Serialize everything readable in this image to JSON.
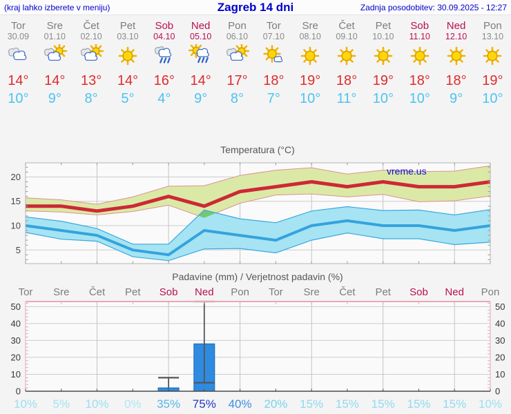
{
  "header": {
    "left_note": "(kraj lahko izberete v meniju)",
    "title": "Zagreb 14 dni",
    "updated": "Zadnja posodobitev: 30.09.2025 - 12:27"
  },
  "colors": {
    "header_blue": "#0000cc",
    "weekday_gray": "#7c7c7c",
    "weekend_red": "#bb0e50",
    "tmax_red": "#dd2c2c",
    "tmin_blue": "#4cc2f1",
    "temp_line_max": "#cc2936",
    "temp_line_min": "#35a3dd",
    "band_max": "#dbe9a6",
    "band_max_edge": "#e09090",
    "band_min": "#a6e4f3",
    "band_min_edge": "#3aa7e0",
    "band_overlap": "#74c874",
    "bar_blue": "#2e8be0",
    "bar_border": "#1a66b8",
    "whisker": "#555555",
    "precip_frame_pink": "#e8a8b8",
    "gridline": "#cccccc",
    "axis_label": "#444444",
    "chart_title": "#555555"
  },
  "forecast": {
    "days": [
      {
        "name": "Tor",
        "date": "30.09",
        "weekend": false,
        "icon": "cloudy",
        "tmax": "14°",
        "tmin": "10°"
      },
      {
        "name": "Sre",
        "date": "01.10",
        "weekend": false,
        "icon": "sun-cloud",
        "tmax": "14°",
        "tmin": "9°"
      },
      {
        "name": "Čet",
        "date": "02.10",
        "weekend": false,
        "icon": "sun-cloud",
        "tmax": "13°",
        "tmin": "8°"
      },
      {
        "name": "Pet",
        "date": "03.10",
        "weekend": false,
        "icon": "sunny",
        "tmax": "14°",
        "tmin": "5°"
      },
      {
        "name": "Sob",
        "date": "04.10",
        "weekend": true,
        "icon": "rain",
        "tmax": "16°",
        "tmin": "4°"
      },
      {
        "name": "Ned",
        "date": "05.10",
        "weekend": true,
        "icon": "sun-cloud-rain",
        "tmax": "14°",
        "tmin": "9°"
      },
      {
        "name": "Pon",
        "date": "06.10",
        "weekend": false,
        "icon": "sun-cloud",
        "tmax": "17°",
        "tmin": "8°"
      },
      {
        "name": "Tor",
        "date": "07.10",
        "weekend": false,
        "icon": "sun-small-cloud",
        "tmax": "18°",
        "tmin": "7°"
      },
      {
        "name": "Sre",
        "date": "08.10",
        "weekend": false,
        "icon": "sunny",
        "tmax": "19°",
        "tmin": "10°"
      },
      {
        "name": "Čet",
        "date": "09.10",
        "weekend": false,
        "icon": "sunny",
        "tmax": "18°",
        "tmin": "11°"
      },
      {
        "name": "Pet",
        "date": "10.10",
        "weekend": false,
        "icon": "sunny",
        "tmax": "19°",
        "tmin": "10°"
      },
      {
        "name": "Sob",
        "date": "11.10",
        "weekend": true,
        "icon": "sunny",
        "tmax": "18°",
        "tmin": "10°"
      },
      {
        "name": "Ned",
        "date": "12.10",
        "weekend": true,
        "icon": "sunny",
        "tmax": "18°",
        "tmin": "9°"
      },
      {
        "name": "Pon",
        "date": "13.10",
        "weekend": false,
        "icon": "sunny",
        "tmax": "19°",
        "tmin": "10°"
      }
    ]
  },
  "chart_data": [
    {
      "type": "area",
      "title": "Temperatura (°C)",
      "watermark": "vreme.us",
      "x_count": 14,
      "ylim": [
        2.2,
        22.9
      ],
      "yticks": [
        5,
        10,
        15,
        20
      ],
      "grid": "on",
      "vgrid_every_days": 2,
      "series": [
        {
          "name": "max-temperature",
          "values": [
            14,
            14,
            13,
            14,
            16,
            14,
            17,
            18,
            19,
            18,
            19,
            18,
            18,
            19
          ]
        },
        {
          "name": "max-range-high",
          "values": [
            15.7,
            15.3,
            14.4,
            15.9,
            18.1,
            18.2,
            20.3,
            21.4,
            21.9,
            20.6,
            21.4,
            21.1,
            21.2,
            22.3
          ]
        },
        {
          "name": "max-range-low",
          "values": [
            13.0,
            12.8,
            12.2,
            12.9,
            14.2,
            11.6,
            14.6,
            16.3,
            16.5,
            15.9,
            16.4,
            14.9,
            15.1,
            16.1
          ]
        },
        {
          "name": "min-temperature",
          "values": [
            10,
            9,
            8,
            5,
            4,
            9,
            8,
            7,
            10,
            11,
            10,
            10,
            9,
            10
          ]
        },
        {
          "name": "min-range-high",
          "values": [
            11.8,
            10.9,
            9.4,
            6.2,
            6.2,
            13.2,
            11.4,
            10.6,
            13.0,
            13.9,
            13.1,
            13.2,
            12.2,
            13.3
          ]
        },
        {
          "name": "min-range-low",
          "values": [
            8.6,
            7.2,
            6.8,
            3.6,
            2.8,
            5.2,
            5.3,
            4.4,
            7.0,
            8.5,
            7.3,
            7.3,
            6.1,
            6.6
          ]
        }
      ]
    },
    {
      "type": "bar",
      "title": "Padavine (mm) / Verjetnost padavin (%)",
      "categories": [
        "Tor",
        "Sre",
        "Čet",
        "Pet",
        "Sob",
        "Ned",
        "Pon",
        "Tor",
        "Sre",
        "Čet",
        "Pet",
        "Sob",
        "Ned",
        "Pon"
      ],
      "weekend_mask": [
        false,
        false,
        false,
        false,
        true,
        true,
        false,
        false,
        false,
        false,
        false,
        true,
        true,
        false
      ],
      "values": [
        0,
        0,
        0,
        0,
        2,
        28,
        0,
        0,
        0,
        0,
        0,
        0,
        0,
        0
      ],
      "err_low": [
        null,
        null,
        null,
        null,
        null,
        5,
        null,
        null,
        null,
        null,
        null,
        null,
        null,
        null
      ],
      "err_high": [
        null,
        null,
        null,
        null,
        8,
        53,
        null,
        null,
        null,
        null,
        null,
        null,
        null,
        null
      ],
      "ylim": [
        0,
        53
      ],
      "yticks": [
        0,
        10,
        20,
        30,
        40,
        50
      ],
      "grid": "on",
      "probabilities": [
        {
          "label": "10%",
          "color": "#9adef2"
        },
        {
          "label": "5%",
          "color": "#a5e3f4"
        },
        {
          "label": "10%",
          "color": "#9adef2"
        },
        {
          "label": "0%",
          "color": "#ade7f6"
        },
        {
          "label": "35%",
          "color": "#58b7e8"
        },
        {
          "label": "75%",
          "color": "#2336cc"
        },
        {
          "label": "40%",
          "color": "#3f8de2"
        },
        {
          "label": "20%",
          "color": "#79d2ee"
        },
        {
          "label": "15%",
          "color": "#8fdaf0"
        },
        {
          "label": "15%",
          "color": "#8fdaf0"
        },
        {
          "label": "15%",
          "color": "#8fdaf0"
        },
        {
          "label": "15%",
          "color": "#8fdaf0"
        },
        {
          "label": "15%",
          "color": "#8fdaf0"
        },
        {
          "label": "10%",
          "color": "#9adef2"
        }
      ]
    }
  ]
}
